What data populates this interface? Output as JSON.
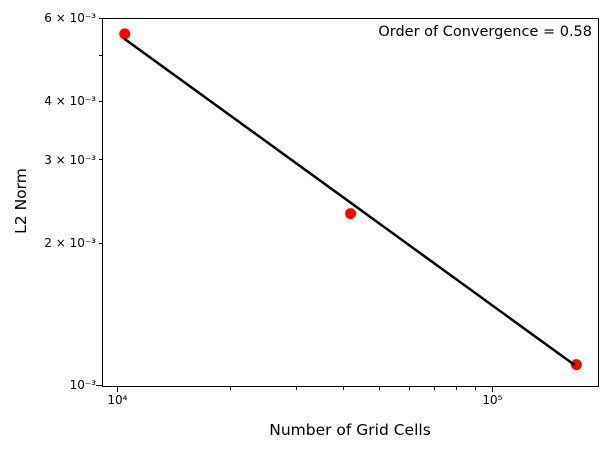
{
  "figure": {
    "background": "#ffffff",
    "spine_color": "#000000"
  },
  "chart_data": {
    "type": "scatter",
    "title": "",
    "annotation": "Order of Convergence = 0.58",
    "xlabel": "Number of Grid Cells",
    "ylabel": "L2 Norm",
    "xscale": "log",
    "yscale": "log",
    "xlim": [
      9100,
      190000
    ],
    "ylim": [
      0.001,
      0.006
    ],
    "grid": false,
    "legend_position": "none",
    "series": [
      {
        "name": "l2-error-points",
        "type": "scatter",
        "color": "#ff0000",
        "marker": "circle",
        "marker_radius": 5.5,
        "x": [
          10400,
          41600,
          166400
        ],
        "y": [
          0.00558,
          0.00232,
          0.00111
        ]
      },
      {
        "name": "power-law-fit-line",
        "type": "line",
        "color": "#000000",
        "line_width": 2.5,
        "slope": -0.58,
        "x": [
          10400,
          164000
        ],
        "y": [
          0.00544,
          0.00111
        ]
      }
    ],
    "x_ticks": {
      "major": [
        {
          "value": 10000,
          "label": "10⁴"
        },
        {
          "value": 100000,
          "label": "10⁵"
        }
      ],
      "minor": [
        {
          "value": 20000,
          "label": ""
        },
        {
          "value": 30000,
          "label": ""
        },
        {
          "value": 40000,
          "label": ""
        },
        {
          "value": 50000,
          "label": ""
        },
        {
          "value": 60000,
          "label": ""
        },
        {
          "value": 70000,
          "label": ""
        },
        {
          "value": 80000,
          "label": ""
        },
        {
          "value": 90000,
          "label": ""
        }
      ]
    },
    "y_ticks": {
      "major": [
        {
          "value": 0.001,
          "label": "10⁻³"
        }
      ],
      "minor": [
        {
          "value": 0.002,
          "label": "2 × 10⁻³"
        },
        {
          "value": 0.003,
          "label": "3 × 10⁻³"
        },
        {
          "value": 0.004,
          "label": "4 × 10⁻³"
        },
        {
          "value": 0.005,
          "label": ""
        },
        {
          "value": 0.006,
          "label": "6 × 10⁻³"
        }
      ]
    }
  }
}
